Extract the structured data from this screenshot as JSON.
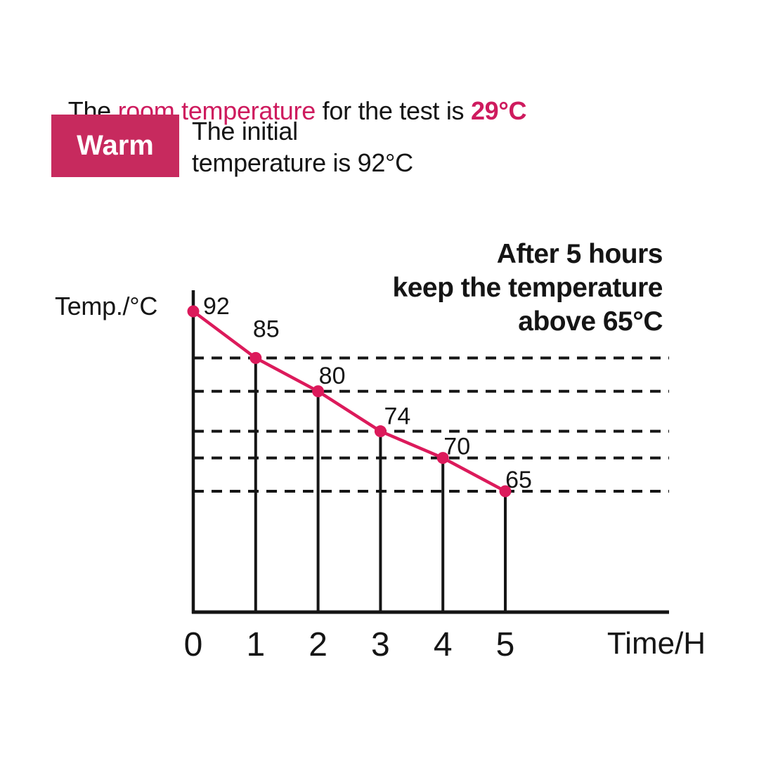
{
  "colors": {
    "ink": "#151515",
    "accent_pink": "#ce1b5e",
    "badge_pink": "#c72a5e",
    "line_pink": "#dc1a5b",
    "background": "#ffffff"
  },
  "heading": {
    "prefix": "The ",
    "highlight": "room temperature",
    "middle": " for the test is ",
    "value": "29°C"
  },
  "badge": {
    "label": "Warm"
  },
  "initial_note": {
    "lines": [
      "The initial",
      "temperature is 92°C"
    ]
  },
  "chart_data": {
    "type": "line",
    "title": "",
    "x": [
      0,
      1,
      2,
      3,
      4,
      5
    ],
    "values": [
      92,
      85,
      80,
      74,
      70,
      65
    ],
    "point_labels": [
      "92",
      "85",
      "80",
      "74",
      "70",
      "65"
    ],
    "x_tick_labels": [
      "0",
      "1",
      "2",
      "3",
      "4",
      "5"
    ],
    "xlabel": "Time/H",
    "ylabel": "Temp./°C",
    "xlim": [
      0,
      5
    ],
    "ylim": [
      65,
      92
    ],
    "grid": "dashed horizontal line at each measured value, droplines at each hour",
    "legend": "none",
    "annotation": [
      "After 5 hours",
      "keep the temperature",
      "above 65°C"
    ],
    "line_color": "#dc1a5b",
    "point_color": "#dc1a5b",
    "axis_color": "#151515"
  }
}
